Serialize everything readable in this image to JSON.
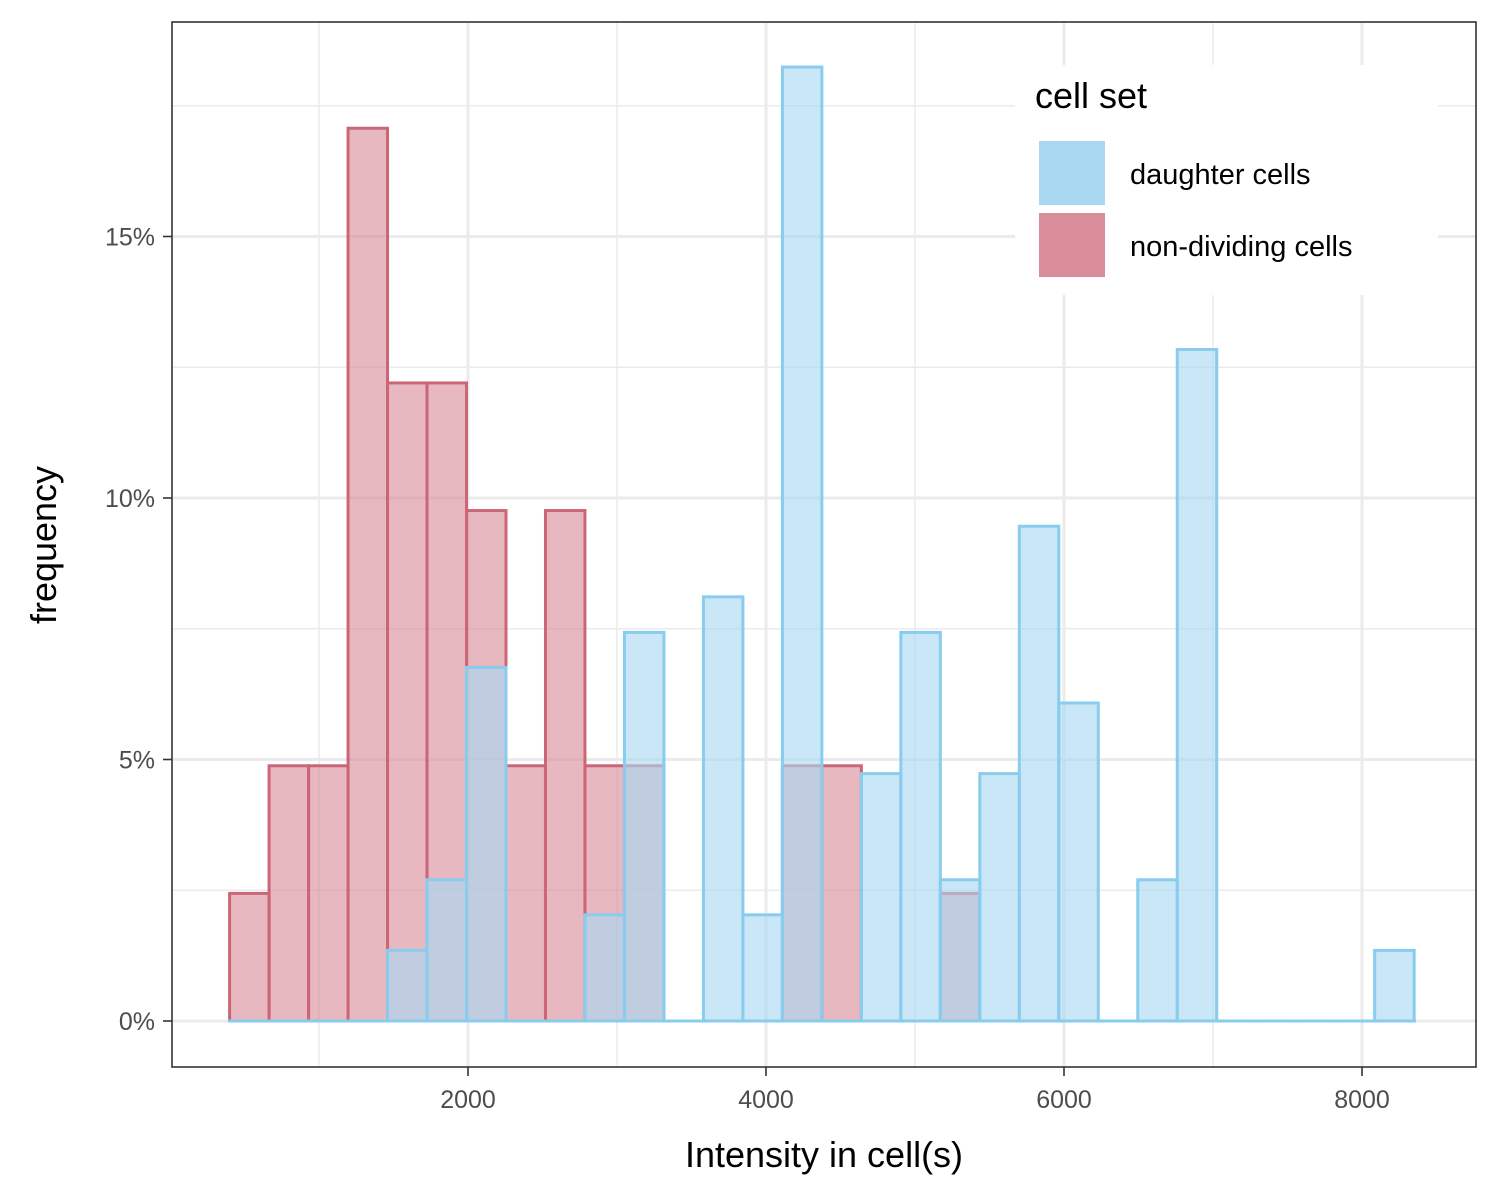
{
  "chart_data": {
    "type": "bar",
    "subtype": "overlapping-histogram",
    "xlabel": "Intensity in cell(s)",
    "ylabel": "frequency",
    "xlim": [
      0,
      8700
    ],
    "ylim": [
      -0.008,
      0.19
    ],
    "x_ticks": [
      2000,
      4000,
      6000,
      8000
    ],
    "x_tick_labels": [
      "2000",
      "4000",
      "6000",
      "8000"
    ],
    "y_ticks": [
      0,
      0.05,
      0.1,
      0.15
    ],
    "y_tick_labels": [
      "0%",
      "5%",
      "10%",
      "15%"
    ],
    "grid": true,
    "legend": {
      "title": "cell set",
      "position": "top-right"
    },
    "bin_start": 400,
    "bin_width": 265,
    "series": [
      {
        "name": "non-dividing cells",
        "fill": "#d98c99",
        "stroke": "#cc6677",
        "values": [
          0.0244,
          0.0488,
          0.0488,
          0.1707,
          0.122,
          0.122,
          0.0976,
          0.0488,
          0.0976,
          0.0488,
          0.0488,
          0,
          0,
          0,
          0.0488,
          0.0488,
          0,
          0,
          0.0244,
          0,
          0,
          0,
          0,
          0,
          0,
          0,
          0,
          0,
          0,
          0
        ]
      },
      {
        "name": "daughter cells",
        "fill": "#a8d8f2",
        "stroke": "#88ccee",
        "values": [
          0,
          0,
          0,
          0,
          0.0135,
          0.027,
          0.0676,
          0,
          0,
          0.0203,
          0.0743,
          0,
          0.0811,
          0.0203,
          0.1824,
          0,
          0.0473,
          0.0743,
          0.027,
          0.0473,
          0.0946,
          0.0608,
          0,
          0.027,
          0.1284,
          0,
          0,
          0,
          0,
          0.0135
        ]
      }
    ]
  }
}
